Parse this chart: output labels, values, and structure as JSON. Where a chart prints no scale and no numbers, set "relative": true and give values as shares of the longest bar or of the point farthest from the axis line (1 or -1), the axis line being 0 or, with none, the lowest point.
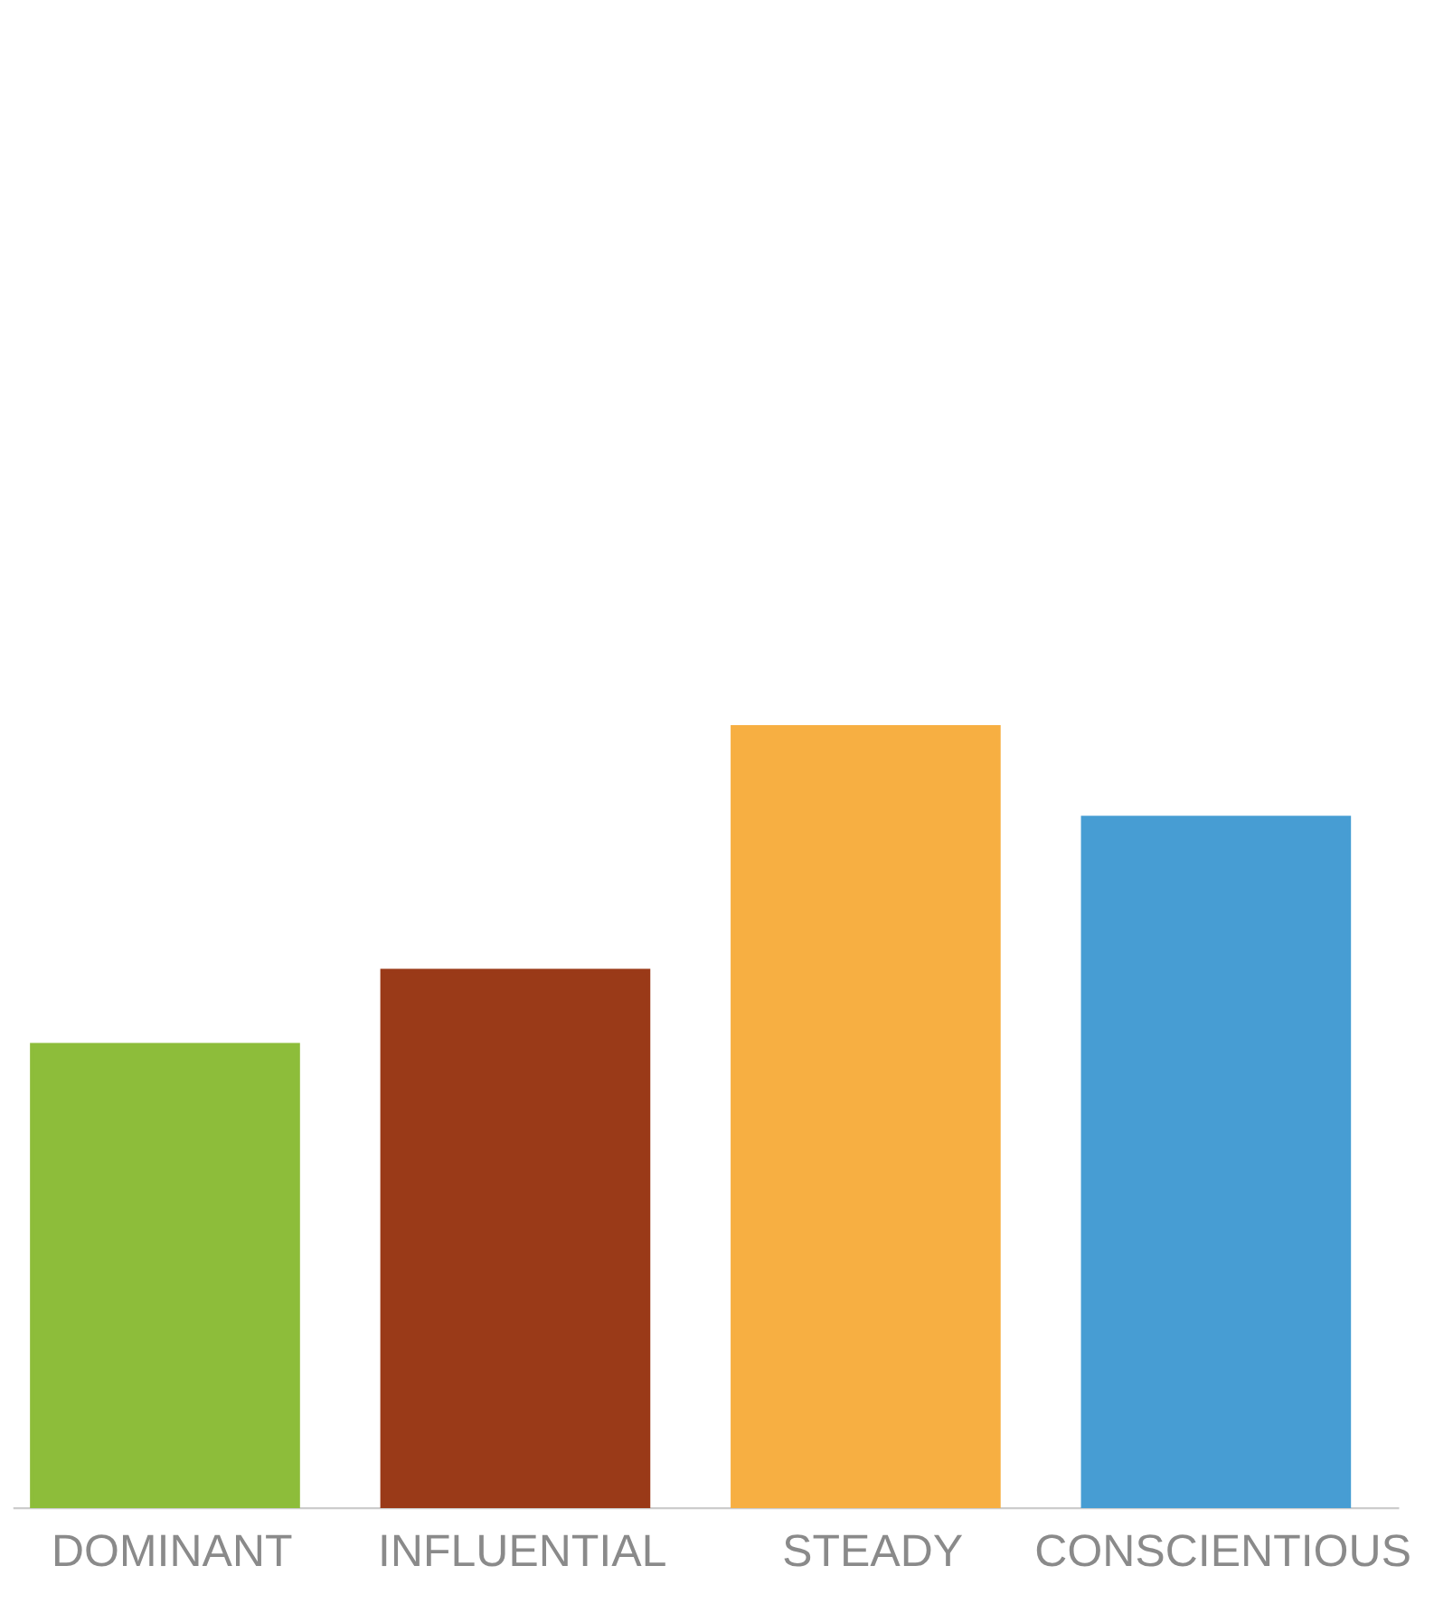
{
  "chart_data": {
    "type": "bar",
    "relative": true,
    "categories": [
      "DOMINANT",
      "INFLUENTIAL",
      "STEADY",
      "CONSCIENTIOUS"
    ],
    "values": [
      0.593,
      0.688,
      1,
      0.884
    ],
    "colors": [
      "#8dbd3a",
      "#9a3a18",
      "#f7af42",
      "#479dd3"
    ]
  }
}
